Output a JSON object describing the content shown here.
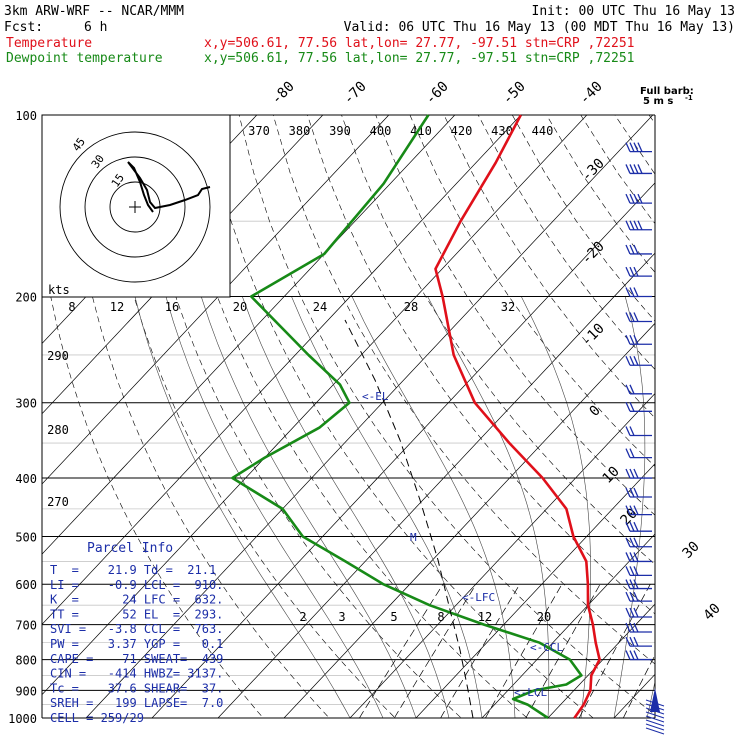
{
  "header": {
    "model": "3km ARW-WRF -- NCAR/MMM",
    "init": "Init: 00 UTC Thu 16 May 13",
    "fcst_label": "Fcst:",
    "fcst_value": "6 h",
    "valid": "Valid: 06 UTC Thu 16 May 13 (00 MDT Thu 16 May 13)",
    "temperature_line": {
      "name": "Temperature",
      "info": "x,y=506.61, 77.56   lat,lon= 27.77, -97.51   stn=CRP ,72251",
      "color": "#e0101a"
    },
    "dewpoint_line": {
      "name": "Dewpoint temperature",
      "info": "x,y=506.61, 77.56   lat,lon= 27.77, -97.51   stn=CRP ,72251",
      "color": "#178a17"
    }
  },
  "barb_key": {
    "line1": "Full barb:",
    "line2": "5 m s",
    "exp": "-1"
  },
  "parcel_info": {
    "title": "Parcel Info",
    "rows": [
      [
        "T  =    21.9 Td =  21.1"
      ],
      [
        "LI =    -0.9 LCL =  910."
      ],
      [
        "K  =      24 LFC =  632."
      ],
      [
        "TT =      52 EL  =  293."
      ],
      [
        "SVI =   -3.8 CCL =  763."
      ],
      [
        "PW =    3.37 YGP =   0.1"
      ],
      [
        "CAPE =    71 SWEAT=  439"
      ],
      [
        "CIN =   -414 HWBZ= 3137."
      ],
      [
        "Tc =    37.6 SHEAR=  37."
      ],
      [
        "SREH =   199 LAPSE=  7.0"
      ],
      [
        "CELL = 259/29"
      ]
    ]
  },
  "hodograph": {
    "unit_label": "kts",
    "ring_labels": [
      "15",
      "30",
      "45"
    ]
  },
  "level_markers": {
    "el": "<-EL",
    "lfc": "<-LFC",
    "ccl": "<-CCL",
    "lcl": "<-LCL",
    "m": "M"
  },
  "chart_data": {
    "type": "skew-t",
    "y_axis": {
      "label": "",
      "scale": "log-pressure",
      "ticks": [
        100,
        200,
        300,
        400,
        500,
        600,
        700,
        800,
        900,
        1000
      ]
    },
    "isotherm_labels": [
      "-80",
      "-70",
      "-60",
      "-50",
      "-40",
      "-30",
      "-20",
      "-10",
      "0",
      "10",
      "20",
      "30",
      "40"
    ],
    "theta_labels": [
      "370",
      "380",
      "390",
      "400",
      "410",
      "420",
      "430",
      "440"
    ],
    "theta_low_labels": [
      "290",
      "280",
      "270"
    ],
    "mixing_ratio_upper_labels": [
      "8",
      "12",
      "16",
      "20",
      "24",
      "28",
      "32"
    ],
    "mixing_ratio_lower_labels": [
      "2",
      "3",
      "5",
      "8",
      "12",
      "20"
    ],
    "series": [
      {
        "name": "Temperature",
        "color": "#e0101a",
        "points": [
          [
            100,
            -70
          ],
          [
            120,
            -67
          ],
          [
            150,
            -64
          ],
          [
            180,
            -61
          ],
          [
            200,
            -56
          ],
          [
            250,
            -46
          ],
          [
            300,
            -36
          ],
          [
            350,
            -25
          ],
          [
            400,
            -15
          ],
          [
            450,
            -7
          ],
          [
            500,
            -2
          ],
          [
            550,
            3.5
          ],
          [
            600,
            7
          ],
          [
            650,
            10
          ],
          [
            700,
            13.5
          ],
          [
            750,
            16.5
          ],
          [
            800,
            19.5
          ],
          [
            850,
            20.5
          ],
          [
            900,
            22.5
          ],
          [
            950,
            23.5
          ],
          [
            1000,
            24
          ]
        ]
      },
      {
        "name": "Dewpoint temperature",
        "color": "#178a17",
        "points": [
          [
            100,
            -84
          ],
          [
            130,
            -81
          ],
          [
            170,
            -80
          ],
          [
            200,
            -85
          ],
          [
            250,
            -68
          ],
          [
            280,
            -59
          ],
          [
            300,
            -55
          ],
          [
            330,
            -56
          ],
          [
            370,
            -60
          ],
          [
            400,
            -62
          ],
          [
            450,
            -50
          ],
          [
            500,
            -43
          ],
          [
            550,
            -33
          ],
          [
            600,
            -24
          ],
          [
            650,
            -14
          ],
          [
            700,
            -3
          ],
          [
            750,
            8
          ],
          [
            800,
            15
          ],
          [
            850,
            19
          ],
          [
            880,
            18
          ],
          [
            900,
            14
          ],
          [
            930,
            12
          ],
          [
            950,
            15
          ],
          [
            1000,
            20
          ]
        ]
      }
    ],
    "wind_barbs": [
      {
        "p": 115,
        "spd": 20
      },
      {
        "p": 125,
        "spd": 20
      },
      {
        "p": 140,
        "spd": 20
      },
      {
        "p": 155,
        "spd": 20
      },
      {
        "p": 170,
        "spd": 15
      },
      {
        "p": 185,
        "spd": 15
      },
      {
        "p": 200,
        "spd": 15
      },
      {
        "p": 220,
        "spd": 15
      },
      {
        "p": 240,
        "spd": 15
      },
      {
        "p": 260,
        "spd": 15
      },
      {
        "p": 290,
        "spd": 10
      },
      {
        "p": 310,
        "spd": 10
      },
      {
        "p": 340,
        "spd": 10
      },
      {
        "p": 370,
        "spd": 10
      },
      {
        "p": 400,
        "spd": 15
      },
      {
        "p": 430,
        "spd": 15
      },
      {
        "p": 460,
        "spd": 15
      },
      {
        "p": 490,
        "spd": 15
      },
      {
        "p": 520,
        "spd": 15
      },
      {
        "p": 550,
        "spd": 15
      },
      {
        "p": 580,
        "spd": 15
      },
      {
        "p": 610,
        "spd": 15
      },
      {
        "p": 640,
        "spd": 15
      },
      {
        "p": 680,
        "spd": 15
      },
      {
        "p": 720,
        "spd": 15
      },
      {
        "p": 760,
        "spd": 15
      },
      {
        "p": 800,
        "spd": 15
      }
    ]
  }
}
